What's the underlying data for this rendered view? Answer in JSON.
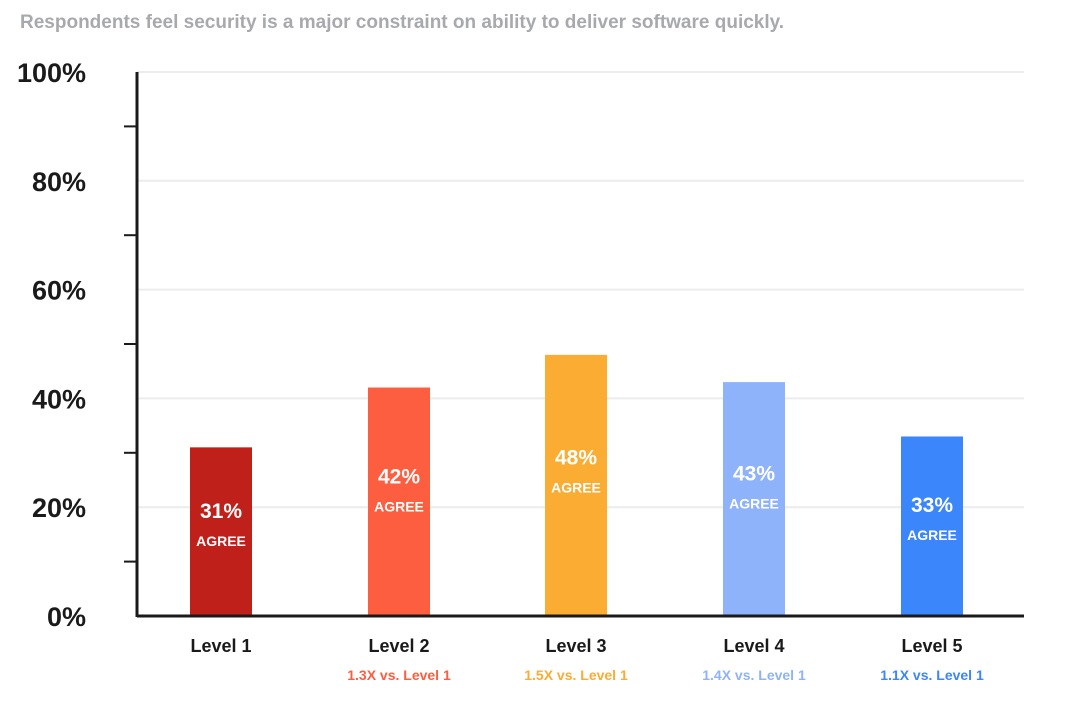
{
  "chart_data": {
    "type": "bar",
    "title": "Respondents feel security is a major constraint on ability to deliver software quickly.",
    "categories": [
      "Level 1",
      "Level 2",
      "Level 3",
      "Level 4",
      "Level 5"
    ],
    "values": [
      31,
      42,
      48,
      43,
      33
    ],
    "data_labels": [
      "31%",
      "42%",
      "48%",
      "43%",
      "33%"
    ],
    "data_label_suffix": "AGREE",
    "comparisons": [
      "",
      "1.3X vs. Level 1",
      "1.5X vs. Level 1",
      "1.4X vs. Level 1",
      "1.1X vs. Level 1"
    ],
    "colors": [
      "#c0201a",
      "#fc5e3f",
      "#fbac33",
      "#8fb3fb",
      "#3b86fb"
    ],
    "ylim": [
      0,
      100
    ],
    "yticks": [
      "0%",
      "20%",
      "40%",
      "60%",
      "80%",
      "100%"
    ],
    "grid": true,
    "xlabel": "",
    "ylabel": ""
  }
}
